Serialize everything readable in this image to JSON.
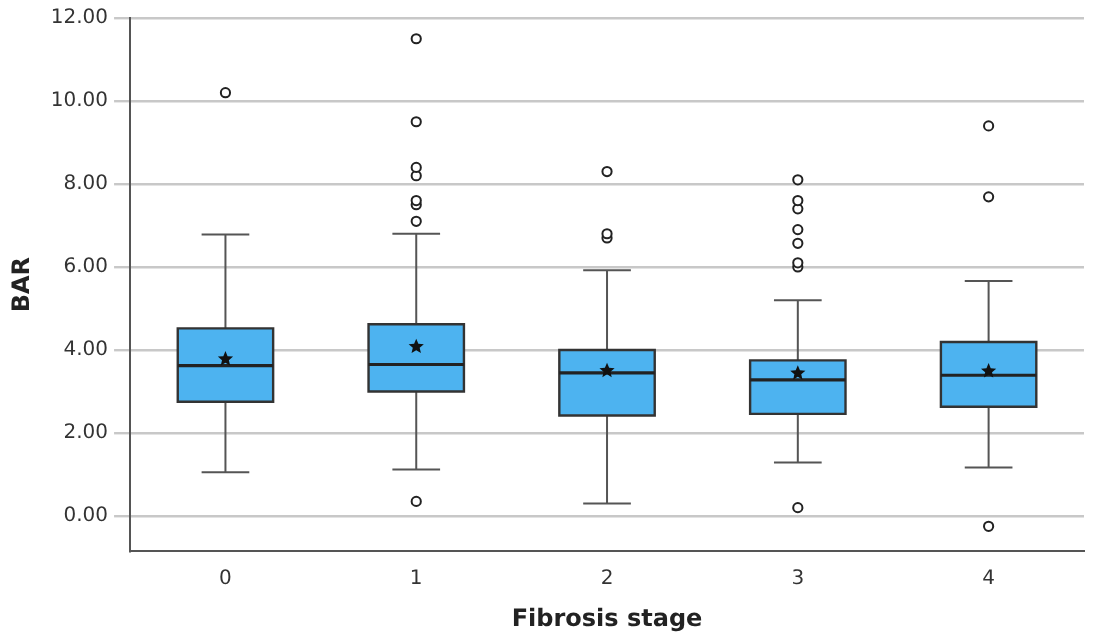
{
  "chart_data": {
    "type": "box",
    "xlabel": "Fibrosis stage",
    "ylabel": "BAR",
    "categories": [
      "0",
      "1",
      "2",
      "3",
      "4"
    ],
    "color": "#4db3f0",
    "boxes": [
      {
        "low": 1.05,
        "q1": 2.75,
        "median": 3.62,
        "q3": 4.52,
        "high": 6.78,
        "mean": 3.78,
        "outliers": [
          10.2
        ]
      },
      {
        "low": 1.12,
        "q1": 3.0,
        "median": 3.65,
        "q3": 4.62,
        "high": 6.8,
        "mean": 4.08,
        "outliers": [
          0.35,
          7.1,
          7.5,
          7.6,
          8.2,
          8.4,
          9.5,
          11.5
        ]
      },
      {
        "low": 0.3,
        "q1": 2.42,
        "median": 3.45,
        "q3": 4.0,
        "high": 5.92,
        "mean": 3.5,
        "outliers": [
          6.7,
          6.8,
          8.3
        ]
      },
      {
        "low": 1.29,
        "q1": 2.46,
        "median": 3.28,
        "q3": 3.75,
        "high": 5.2,
        "mean": 3.44,
        "outliers": [
          0.2,
          6.0,
          6.1,
          6.57,
          6.9,
          7.4,
          7.6,
          8.1
        ]
      },
      {
        "low": 1.17,
        "q1": 2.63,
        "median": 3.39,
        "q3": 4.19,
        "high": 5.66,
        "mean": 3.49,
        "outliers": [
          -0.25,
          7.69,
          9.4
        ]
      }
    ],
    "ylim": [
      -0.85,
      12
    ],
    "yticks": [
      {
        "value": 0,
        "label": "0.00"
      },
      {
        "value": 2,
        "label": "2.00"
      },
      {
        "value": 4,
        "label": "4.00"
      },
      {
        "value": 6,
        "label": "6.00"
      },
      {
        "value": 8,
        "label": "8.00"
      },
      {
        "value": 10,
        "label": "10.00"
      },
      {
        "value": 12,
        "label": "12.00"
      }
    ],
    "grid": "y",
    "marker": "star"
  }
}
